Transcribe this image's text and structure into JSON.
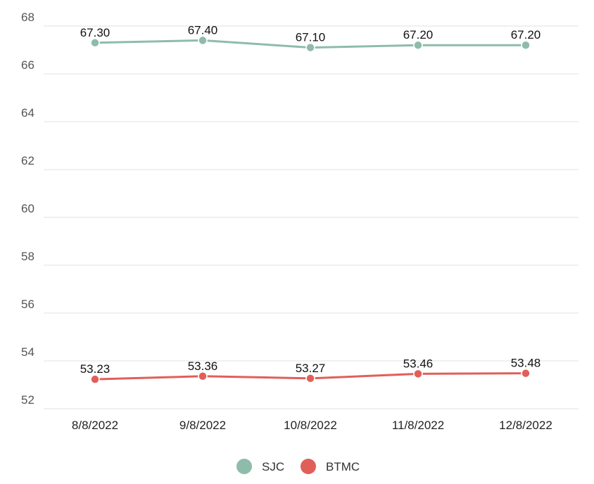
{
  "chart_data": {
    "type": "line",
    "title": "",
    "xlabel": "",
    "ylabel": "",
    "categories": [
      "8/8/2022",
      "9/8/2022",
      "10/8/2022",
      "11/8/2022",
      "12/8/2022"
    ],
    "ylim": [
      52,
      68
    ],
    "yticks": [
      52,
      54,
      56,
      58,
      60,
      62,
      64,
      66,
      68
    ],
    "grid": true,
    "legend": "bottom",
    "series": [
      {
        "name": "SJC",
        "color": "#8fbcaa",
        "values": [
          67.3,
          67.4,
          67.1,
          67.2,
          67.2
        ],
        "labels": [
          "67.30",
          "67.40",
          "67.10",
          "67.20",
          "67.20"
        ]
      },
      {
        "name": "BTMC",
        "color": "#e15f59",
        "values": [
          53.23,
          53.36,
          53.27,
          53.46,
          53.48
        ],
        "labels": [
          "53.23",
          "53.36",
          "53.27",
          "53.46",
          "53.48"
        ]
      }
    ]
  }
}
